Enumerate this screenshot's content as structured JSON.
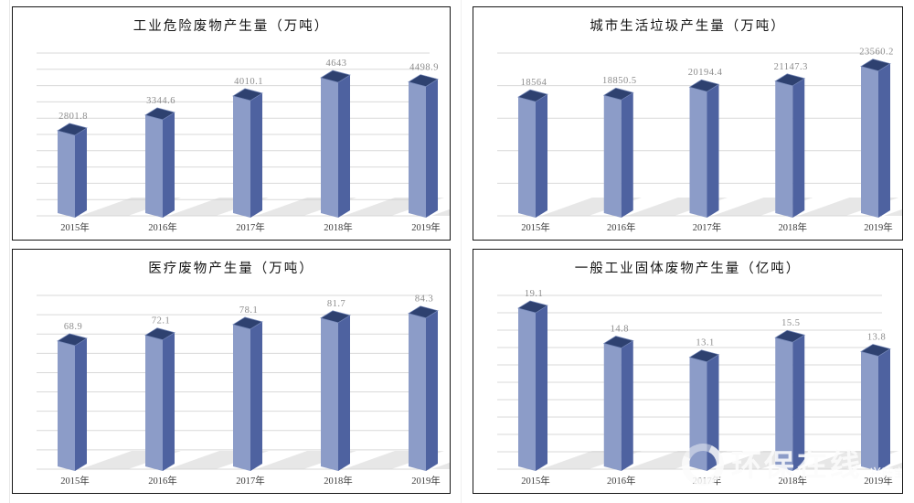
{
  "page": {
    "background": "#ffffff",
    "watermark": {
      "logo": "ring-icon",
      "text": "环保在线",
      "suffix": "兴旺宝"
    }
  },
  "colors": {
    "bar_left_face": "#8c9cc8",
    "bar_right_face": "#4e62a0",
    "bar_top_face": "#2e4170",
    "bar_top_edge": "#7487b8",
    "shadow": "#cfcfcf",
    "gridline": "#d9d9d9",
    "value_label": "#8c8c8c",
    "axis_label": "#3d3d3d",
    "title": "#141414",
    "panel_border": "#161616"
  },
  "chart_data": [
    {
      "type": "bar",
      "style": "3d-column",
      "title": "工业危险废物产生量（万吨）",
      "categories": [
        "2015年",
        "2016年",
        "2017年",
        "2018年",
        "2019年"
      ],
      "values": [
        2801.8,
        3344.6,
        4010.1,
        4643,
        4498.9
      ],
      "data_labels": [
        "2801.8",
        "3344.6",
        "4010.1",
        "4643",
        "4498.9"
      ],
      "xlabel": "",
      "ylabel": "",
      "ylim": [
        0,
        5000
      ],
      "gridline_step": 500,
      "grid": true,
      "legend": "none"
    },
    {
      "type": "bar",
      "style": "3d-column",
      "title": "城市生活垃圾产生量（万吨）",
      "categories": [
        "2015年",
        "2016年",
        "2017年",
        "2018年",
        "2019年"
      ],
      "values": [
        18564,
        18850.5,
        20194.4,
        21147.3,
        23560.2
      ],
      "data_labels": [
        "18564",
        "18850.5",
        "20194.4",
        "21147.3",
        "23560.2"
      ],
      "xlabel": "",
      "ylabel": "",
      "ylim": [
        0,
        25000
      ],
      "gridline_step": 5000,
      "grid": true,
      "legend": "none"
    },
    {
      "type": "bar",
      "style": "3d-column",
      "title": "医疗废物产生量（万吨）",
      "categories": [
        "2015年",
        "2016年",
        "2017年",
        "2018年",
        "2019年"
      ],
      "values": [
        68.9,
        72.1,
        78.1,
        81.7,
        84.3
      ],
      "data_labels": [
        "68.9",
        "72.1",
        "78.1",
        "81.7",
        "84.3"
      ],
      "xlabel": "",
      "ylabel": "",
      "ylim": [
        0,
        90
      ],
      "gridline_step": 10,
      "grid": true,
      "legend": "none"
    },
    {
      "type": "bar",
      "style": "3d-column",
      "title": "一般工业固体废物产生量（亿吨）",
      "categories": [
        "2015年",
        "2016年",
        "2017年",
        "2018年",
        "2019年"
      ],
      "values": [
        19.1,
        14.8,
        13.1,
        15.5,
        13.8
      ],
      "data_labels": [
        "19.1",
        "14.8",
        "13.1",
        "15.5",
        "13.8"
      ],
      "xlabel": "",
      "ylabel": "",
      "ylim": [
        0,
        20
      ],
      "gridline_step": 2,
      "grid": true,
      "legend": "none"
    }
  ]
}
